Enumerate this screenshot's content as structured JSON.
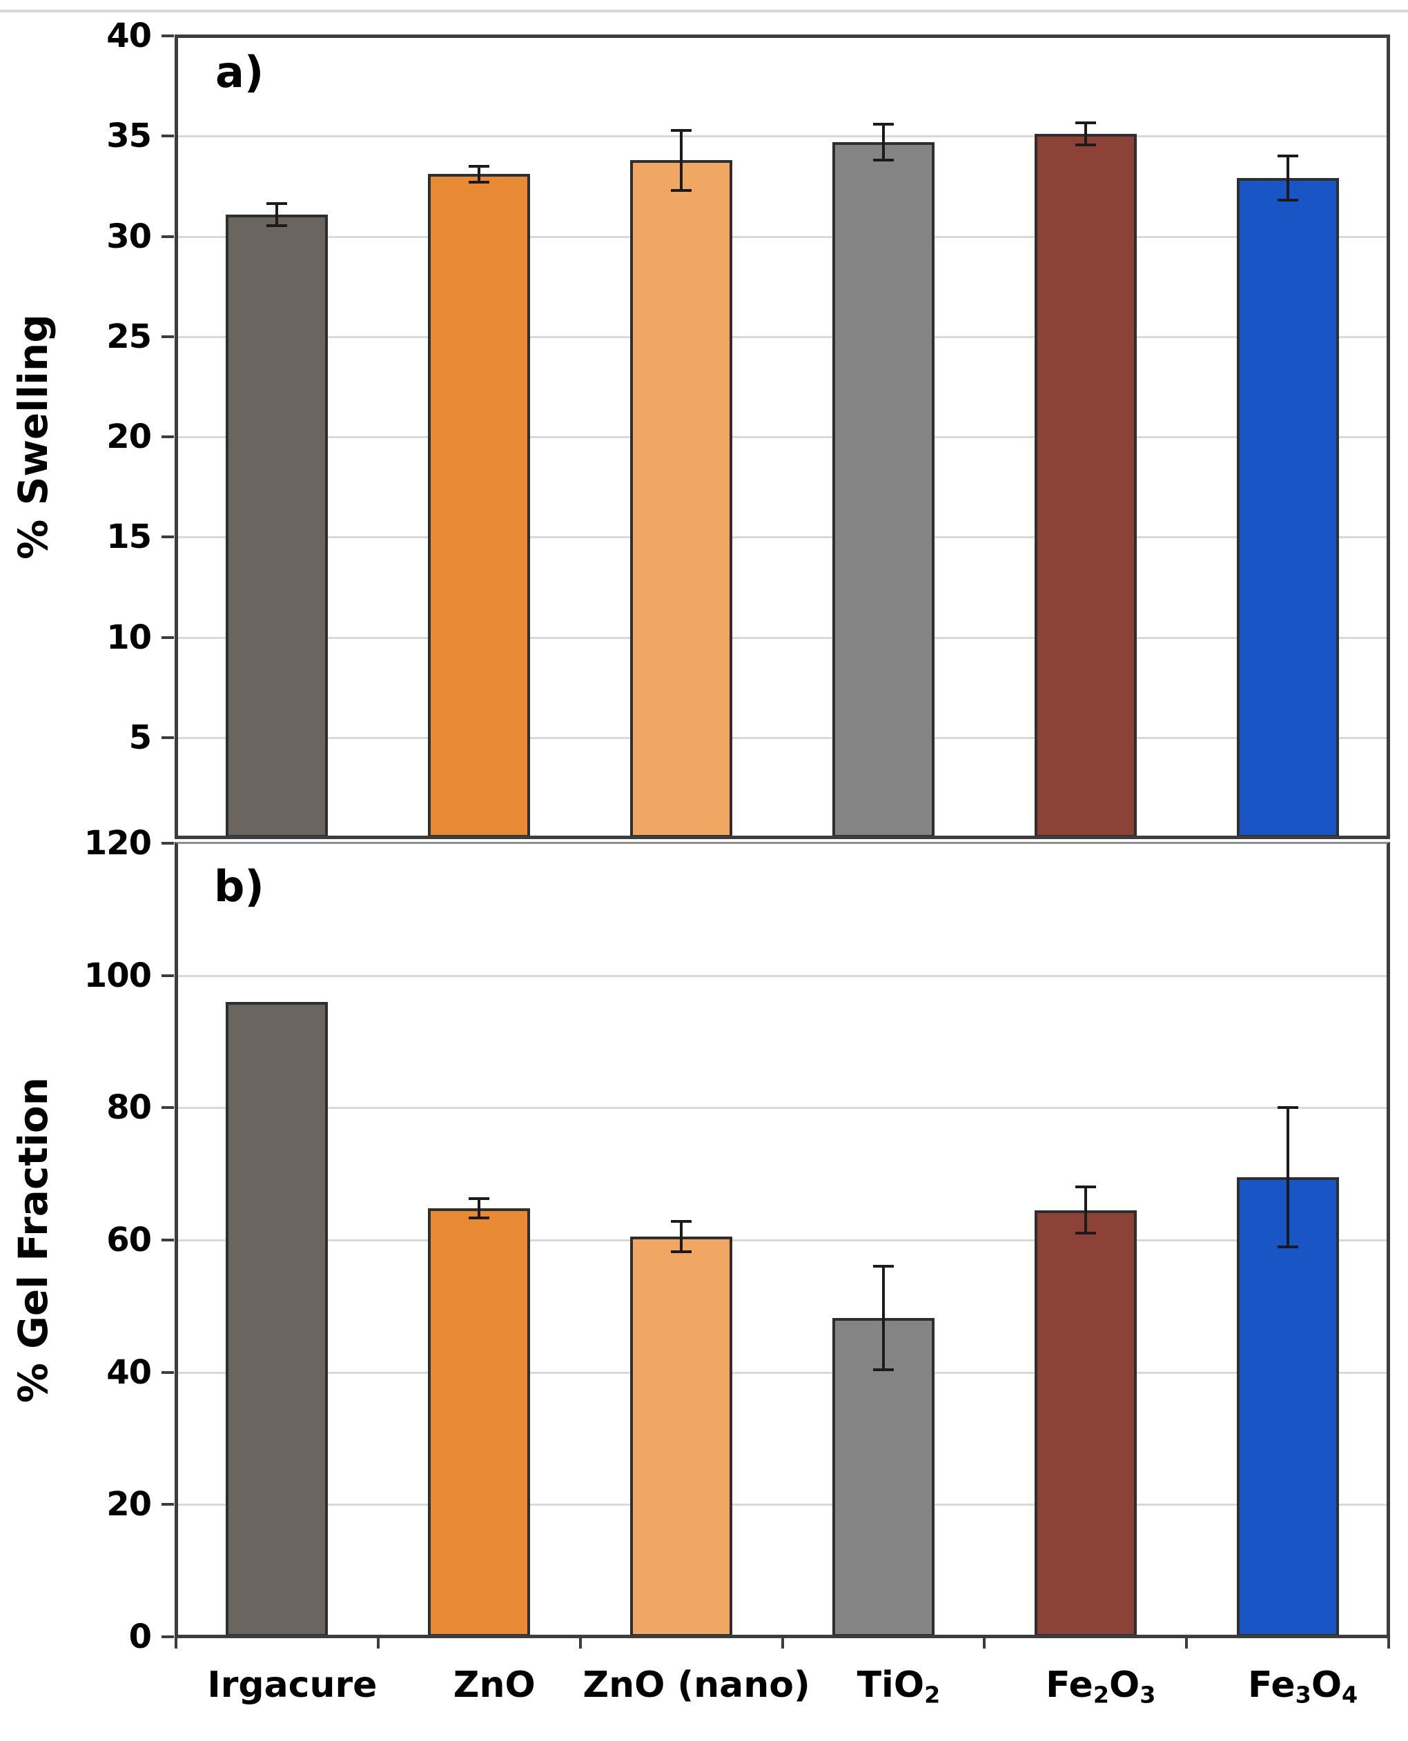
{
  "chart_data": [
    {
      "type": "bar",
      "panel_label": "a)",
      "ylabel": "% Swelling",
      "categories": [
        "Irgacure",
        "ZnO",
        "ZnO (nano)",
        "TiO2",
        "Fe2O3",
        "Fe3O4"
      ],
      "values": [
        31.1,
        33.1,
        33.8,
        34.7,
        35.1,
        32.9
      ],
      "errors": [
        0.55,
        0.4,
        1.5,
        0.9,
        0.55,
        1.1
      ],
      "ylim": [
        0,
        40
      ],
      "ytick_step": 5,
      "ytick_values": [
        5,
        10,
        15,
        20,
        25,
        30,
        35,
        40
      ],
      "ytick_labels": [
        "5",
        "10",
        "15",
        "20",
        "25",
        "30",
        "35",
        "40"
      ],
      "grid": true,
      "legend_position": "none"
    },
    {
      "type": "bar",
      "panel_label": "b)",
      "ylabel": "% Gel Fraction",
      "categories": [
        "Irgacure",
        "ZnO",
        "ZnO (nano)",
        "TiO2",
        "Fe2O3",
        "Fe3O4"
      ],
      "values": [
        96.0,
        64.8,
        60.5,
        48.2,
        64.5,
        69.5
      ],
      "errors": [
        0,
        1.5,
        2.3,
        7.8,
        3.5,
        10.5
      ],
      "ylim": [
        0,
        120
      ],
      "ytick_step": 20,
      "ytick_values": [
        0,
        20,
        40,
        60,
        80,
        100,
        120
      ],
      "ytick_labels": [
        "0",
        "20",
        "40",
        "60",
        "80",
        "100",
        "120"
      ],
      "grid": true,
      "legend_position": "none"
    }
  ],
  "categories_rich": [
    {
      "id": "irgacure",
      "parts": [
        {
          "t": "Irgacure"
        }
      ]
    },
    {
      "id": "zno",
      "parts": [
        {
          "t": "ZnO"
        }
      ]
    },
    {
      "id": "zno-nano",
      "parts": [
        {
          "t": "ZnO (nano)"
        }
      ]
    },
    {
      "id": "tio2",
      "parts": [
        {
          "t": "TiO"
        },
        {
          "t": "2",
          "sub": true
        }
      ]
    },
    {
      "id": "fe2o3",
      "parts": [
        {
          "t": "Fe"
        },
        {
          "t": "2",
          "sub": true
        },
        {
          "t": "O"
        },
        {
          "t": "3",
          "sub": true
        }
      ]
    },
    {
      "id": "fe3o4",
      "parts": [
        {
          "t": "Fe"
        },
        {
          "t": "3",
          "sub": true
        },
        {
          "t": "O"
        },
        {
          "t": "4",
          "sub": true
        }
      ]
    }
  ],
  "style": {
    "bar_colors": [
      "#6b655f",
      "#e78a33",
      "#f0a763",
      "#848484",
      "#8c4237",
      "#1a55c5"
    ],
    "bar_border": "#2e2e2e",
    "gridline": "#d9d9d9",
    "axis": "#3d3d3d",
    "panel_divider": "#8f8f8f",
    "error_bar": "#1b1b1b",
    "background": "#ffffff",
    "text": "#000000"
  }
}
